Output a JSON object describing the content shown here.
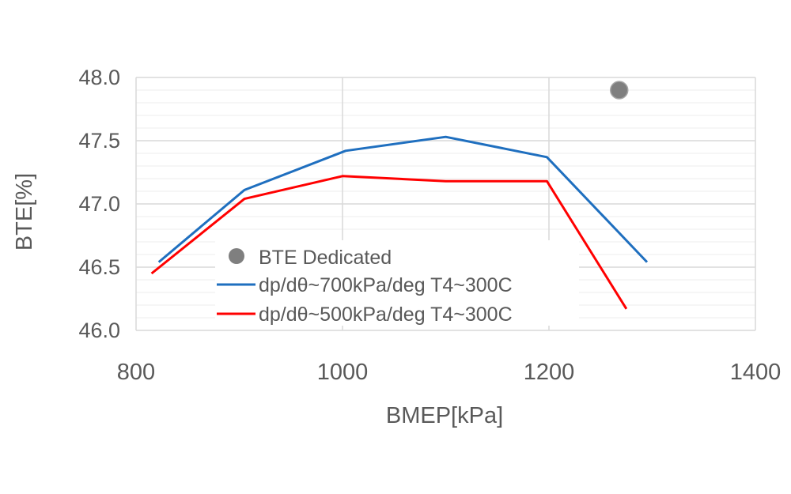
{
  "chart_data": {
    "type": "line",
    "title": "",
    "xlabel": "BMEP[kPa]",
    "ylabel": "BTE[%]",
    "xlim": [
      800,
      1400
    ],
    "ylim": [
      46.0,
      48.0
    ],
    "x_ticks": [
      800,
      1000,
      1200,
      1400
    ],
    "x_tick_labels": [
      "800",
      "1000",
      "1200",
      "1400"
    ],
    "y_ticks": [
      46.0,
      46.5,
      47.0,
      47.5,
      48.0
    ],
    "y_tick_labels": [
      "46.0",
      "46.5",
      "47.0",
      "47.5",
      "48.0"
    ],
    "grid": "on",
    "legend_position": "center-bottom inside plot",
    "series": [
      {
        "name": "BTE Dedicated",
        "kind": "scatter",
        "color": "#7f7f7f",
        "x": [
          1268
        ],
        "y": [
          47.9
        ]
      },
      {
        "name": "dp/dθ~700kPa/deg  T4~300C",
        "kind": "line",
        "color": "#1f6fbf",
        "x": [
          822,
          905,
          1003,
          1100,
          1198,
          1295
        ],
        "y": [
          46.54,
          47.11,
          47.42,
          47.53,
          47.37,
          46.54
        ]
      },
      {
        "name": "dp/dθ~500kPa/deg  T4~300C",
        "kind": "line",
        "color": "#ff0000",
        "x": [
          815,
          905,
          1000,
          1100,
          1198,
          1275
        ],
        "y": [
          46.45,
          47.04,
          47.22,
          47.18,
          47.18,
          46.17
        ]
      }
    ]
  }
}
